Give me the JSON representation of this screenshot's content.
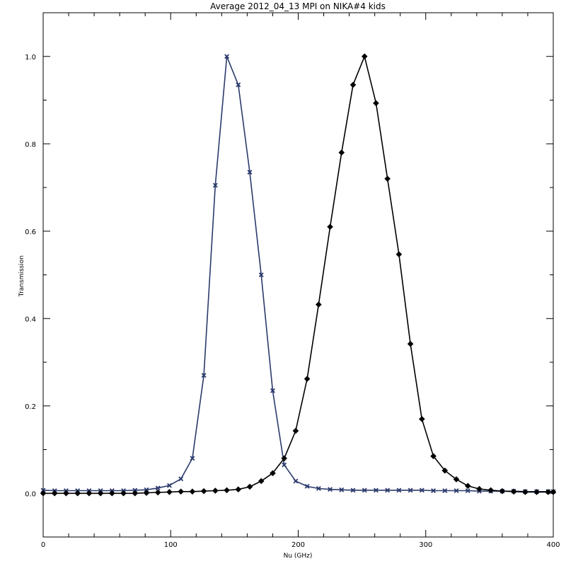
{
  "chart_data": {
    "type": "line",
    "title": "Average 2012_04_13 MPI on NIKA#4 kids",
    "xlabel": "Nu (GHz)",
    "ylabel": "Transmission",
    "xlim": [
      0,
      400
    ],
    "ylim": [
      -0.1,
      1.1
    ],
    "x_ticks": [
      0,
      100,
      200,
      300,
      400
    ],
    "x_tick_labels": [
      "0",
      "100",
      "200",
      "300",
      "400"
    ],
    "y_ticks": [
      0.0,
      0.2,
      0.4,
      0.6,
      0.8,
      1.0
    ],
    "y_tick_labels": [
      "0.0",
      "0.2",
      "0.4",
      "0.6",
      "0.8",
      "1.0"
    ],
    "grid": false,
    "legend": "none",
    "series": [
      {
        "color": "#2b3a6b",
        "marker": "x",
        "x": [
          0,
          9,
          18,
          27,
          36,
          45,
          54,
          63,
          72,
          81,
          90,
          99,
          108,
          117,
          126,
          135,
          144,
          153,
          162,
          171,
          180,
          189,
          198,
          207,
          216,
          225,
          234,
          243,
          252,
          261,
          270,
          279,
          288,
          297,
          306,
          315,
          324,
          333,
          342,
          351,
          360,
          369,
          378,
          387,
          396,
          400
        ],
        "y": [
          0.007,
          0.006,
          0.006,
          0.006,
          0.006,
          0.006,
          0.006,
          0.006,
          0.007,
          0.008,
          0.012,
          0.018,
          0.033,
          0.08,
          0.27,
          0.705,
          1.0,
          0.935,
          0.735,
          0.5,
          0.235,
          0.065,
          0.028,
          0.016,
          0.011,
          0.009,
          0.008,
          0.007,
          0.007,
          0.007,
          0.007,
          0.007,
          0.007,
          0.007,
          0.006,
          0.006,
          0.006,
          0.006,
          0.005,
          0.005,
          0.005,
          0.005,
          0.004,
          0.004,
          0.004,
          0.004
        ]
      },
      {
        "color": "#000000",
        "marker": "diamond",
        "x": [
          0,
          9,
          18,
          27,
          36,
          45,
          54,
          63,
          72,
          81,
          90,
          99,
          108,
          117,
          126,
          135,
          144,
          153,
          162,
          171,
          180,
          189,
          198,
          207,
          216,
          225,
          234,
          243,
          252,
          261,
          270,
          279,
          288,
          297,
          306,
          315,
          324,
          333,
          342,
          351,
          360,
          369,
          378,
          387,
          396,
          400
        ],
        "y": [
          0.0,
          0.0,
          0.0,
          0.0,
          0.0,
          0.0,
          0.0,
          0.0,
          0.0,
          0.001,
          0.002,
          0.003,
          0.004,
          0.004,
          0.005,
          0.006,
          0.007,
          0.009,
          0.015,
          0.028,
          0.046,
          0.08,
          0.143,
          0.262,
          0.432,
          0.61,
          0.78,
          0.935,
          1.0,
          0.893,
          0.72,
          0.547,
          0.342,
          0.17,
          0.085,
          0.052,
          0.032,
          0.017,
          0.01,
          0.007,
          0.005,
          0.004,
          0.003,
          0.003,
          0.003,
          0.003
        ]
      }
    ]
  }
}
